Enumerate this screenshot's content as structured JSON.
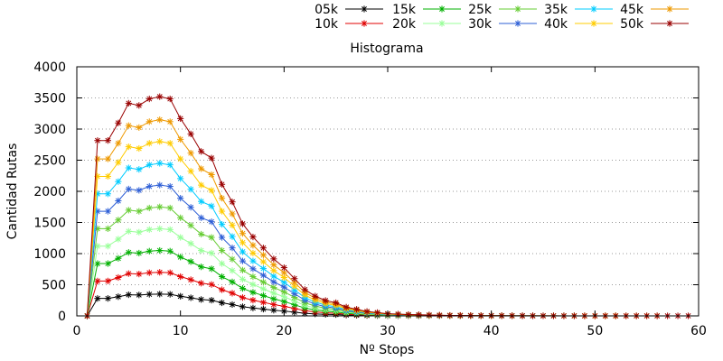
{
  "chart_data": {
    "type": "line",
    "title": "Histograma",
    "xlabel": "Nº Stops",
    "ylabel": "Cantidad Rutas",
    "xlim": [
      0,
      60
    ],
    "ylim": [
      0,
      4000
    ],
    "xticks": [
      0,
      10,
      20,
      30,
      40,
      50,
      60
    ],
    "yticks": [
      0,
      500,
      1000,
      1500,
      2000,
      2500,
      3000,
      3500,
      4000
    ],
    "grid": "horizontal-dotted",
    "legend_position": "top-right",
    "marker": "asterisk",
    "x": [
      1,
      2,
      3,
      4,
      5,
      6,
      7,
      8,
      9,
      10,
      11,
      12,
      13,
      14,
      15,
      16,
      17,
      18,
      19,
      20,
      21,
      22,
      23,
      24,
      25,
      26,
      27,
      28,
      29,
      30,
      31,
      32,
      33,
      34,
      35,
      36,
      37,
      38,
      39,
      40,
      41,
      42,
      43,
      44,
      45,
      46,
      47,
      48,
      49,
      50,
      51,
      52,
      53,
      54,
      55,
      56,
      57,
      58,
      59
    ],
    "base_profile": [
      0.0,
      0.8,
      0.8,
      0.88,
      0.97,
      0.96,
      0.99,
      1.0,
      0.99,
      0.9,
      0.83,
      0.75,
      0.72,
      0.6,
      0.52,
      0.42,
      0.36,
      0.31,
      0.26,
      0.22,
      0.17,
      0.12,
      0.09,
      0.07,
      0.06,
      0.04,
      0.03,
      0.02,
      0.015,
      0.01,
      0.008,
      0.006,
      0.005,
      0.004,
      0.003,
      0.002,
      0.002,
      0.0015,
      0.001,
      0.001,
      0.0008,
      0.0006,
      0.0005,
      0.0004,
      0.0003,
      0.0003,
      0.0002,
      0.0002,
      0.0001,
      0.0001,
      0.0001,
      0.0001,
      0.0001,
      0.0001,
      0.0001,
      0.0001,
      0.0001,
      0.0001,
      0.0001
    ],
    "series": [
      {
        "name": "05k",
        "color": "#000000",
        "peak": 350,
        "max_x": 33
      },
      {
        "name": "10k",
        "color": "#e00000",
        "peak": 700,
        "max_x": 35
      },
      {
        "name": "15k",
        "color": "#00b000",
        "peak": 1050,
        "max_x": 37
      },
      {
        "name": "20k",
        "color": "#99ff99",
        "peak": 1400,
        "max_x": 40
      },
      {
        "name": "25k",
        "color": "#66cc33",
        "peak": 1750,
        "max_x": 42
      },
      {
        "name": "30k",
        "color": "#2e5fd6",
        "peak": 2100,
        "max_x": 45
      },
      {
        "name": "35k",
        "color": "#00ccff",
        "peak": 2450,
        "max_x": 48
      },
      {
        "name": "40k",
        "color": "#ffcc00",
        "peak": 2800,
        "max_x": 52
      },
      {
        "name": "45k",
        "color": "#ee9900",
        "peak": 3150,
        "max_x": 56
      },
      {
        "name": "50k",
        "color": "#990000",
        "peak": 3520,
        "max_x": 59
      }
    ]
  }
}
